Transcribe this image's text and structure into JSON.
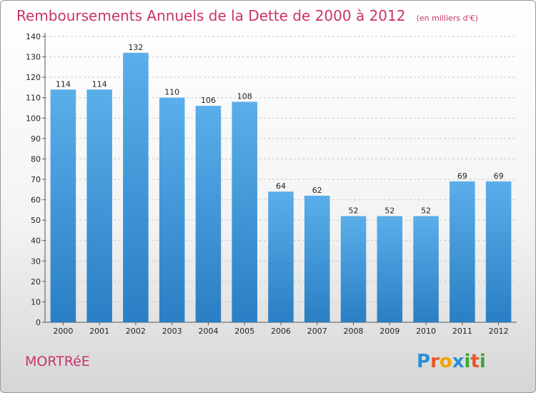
{
  "page": {
    "commune": "MORTRéE",
    "logo": {
      "letters": [
        "P",
        "r",
        "o",
        "x",
        "i",
        "t",
        "i"
      ],
      "colors": [
        "#2a8fd6",
        "#e8572a",
        "#f2a400",
        "#2a8fd6",
        "#3aa83a",
        "#e8572a",
        "#3aa83a"
      ]
    }
  },
  "chart_data": {
    "type": "bar",
    "title": "Remboursements Annuels de la Dette de 2000 à 2012",
    "subtitle": "(en milliers d'€)",
    "categories": [
      "2000",
      "2001",
      "2002",
      "2003",
      "2004",
      "2005",
      "2006",
      "2007",
      "2008",
      "2009",
      "2010",
      "2011",
      "2012"
    ],
    "values": [
      114,
      114,
      132,
      110,
      106,
      108,
      64,
      62,
      52,
      52,
      52,
      69,
      69
    ],
    "yticks": [
      "0",
      "10",
      "20",
      "30",
      "40",
      "50",
      "60",
      "70",
      "80",
      "90",
      "100",
      "110",
      "120",
      "130",
      "140"
    ],
    "ylim": [
      0,
      140
    ],
    "grid": true,
    "bar_color_top": "#5aaeea",
    "bar_color_bottom": "#2a7fc4"
  }
}
